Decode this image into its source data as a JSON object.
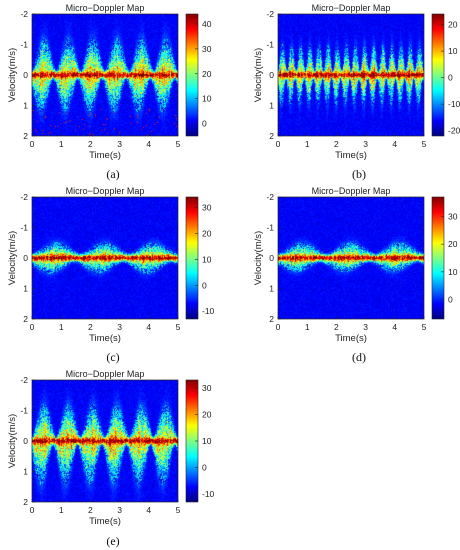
{
  "chart_data": [
    {
      "panel_label": "(a)",
      "type": "heatmap",
      "title": "Micro−Doppler Map",
      "xlabel": "Time(s)",
      "ylabel": "Velocity(m/s)",
      "xlim": [
        0,
        5
      ],
      "ylim": [
        -2,
        2
      ],
      "y_reversed": true,
      "xticks": [
        0,
        1,
        2,
        3,
        4,
        5
      ],
      "yticks": [
        -2,
        -1,
        0,
        1,
        2
      ],
      "colormap": "jet",
      "colorbar": {
        "min": -5,
        "max": 44,
        "ticks": [
          0,
          10,
          20,
          30,
          40
        ]
      },
      "pattern": {
        "cycles": 6,
        "up_amplitude": 1.0,
        "down_amplitude": 1.0
      }
    },
    {
      "panel_label": "(b)",
      "type": "heatmap",
      "title": "Micro−Doppler Map",
      "xlabel": "Time(s)",
      "ylabel": "Velocity(m/s)",
      "xlim": [
        0,
        5
      ],
      "ylim": [
        -2,
        2
      ],
      "y_reversed": true,
      "xticks": [
        0,
        1,
        2,
        3,
        4,
        5
      ],
      "yticks": [
        -2,
        -1,
        0,
        1,
        2
      ],
      "colormap": "jet",
      "colorbar": {
        "min": -22,
        "max": 24,
        "ticks": [
          -20,
          -10,
          0,
          10,
          20
        ]
      },
      "pattern": {
        "cycles": 16,
        "up_amplitude": 0.8,
        "down_amplitude": 0.8
      }
    },
    {
      "panel_label": "(c)",
      "type": "heatmap",
      "title": "Micro−Doppler Map",
      "xlabel": "Time(s)",
      "ylabel": "Velocity(m/s)",
      "xlim": [
        0,
        5
      ],
      "ylim": [
        -2,
        2
      ],
      "y_reversed": true,
      "xticks": [
        0,
        1,
        2,
        3,
        4,
        5
      ],
      "yticks": [
        -2,
        -1,
        0,
        1,
        2
      ],
      "colormap": "jet",
      "colorbar": {
        "min": -13,
        "max": 34,
        "ticks": [
          -10,
          0,
          10,
          20,
          30
        ]
      },
      "pattern": {
        "cycles": 3,
        "up_amplitude": 0.35,
        "down_amplitude": 0.35
      }
    },
    {
      "panel_label": "(d)",
      "type": "heatmap",
      "title": "Micro−Doppler Map",
      "xlabel": "Time(s)",
      "ylabel": "Velocity(m/s)",
      "xlim": [
        0,
        5
      ],
      "ylim": [
        -2,
        2
      ],
      "y_reversed": true,
      "xticks": [
        0,
        1,
        2,
        3,
        4,
        5
      ],
      "yticks": [
        -2,
        -1,
        0,
        1,
        2
      ],
      "colormap": "jet",
      "colorbar": {
        "min": -7,
        "max": 37,
        "ticks": [
          0,
          10,
          20,
          30
        ]
      },
      "pattern": {
        "cycles": 3,
        "up_amplitude": 0.35,
        "down_amplitude": 0.3
      }
    },
    {
      "panel_label": "(e)",
      "type": "heatmap",
      "title": "Micro−Doppler Map",
      "xlabel": "Time(s)",
      "ylabel": "Velocity(m/s)",
      "xlim": [
        0,
        5
      ],
      "ylim": [
        -2,
        2
      ],
      "y_reversed": true,
      "xticks": [
        0,
        1,
        2,
        3,
        4,
        5
      ],
      "yticks": [
        -2,
        -1,
        0,
        1,
        2
      ],
      "colormap": "jet",
      "colorbar": {
        "min": -13,
        "max": 33,
        "ticks": [
          -10,
          0,
          10,
          20,
          30
        ]
      },
      "pattern": {
        "cycles": 6,
        "up_amplitude": 1.0,
        "down_amplitude": 1.2
      }
    }
  ]
}
